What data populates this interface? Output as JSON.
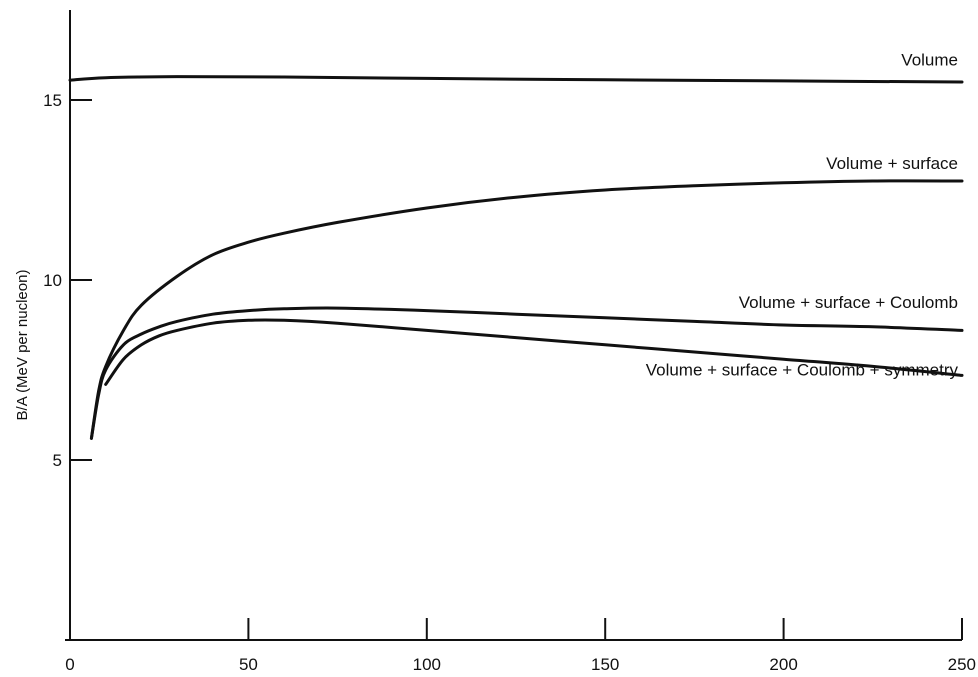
{
  "chart_data": {
    "type": "line",
    "title": "",
    "xlabel": "",
    "ylabel": "B/A (MeV per nucleon)",
    "xlim": [
      0,
      250
    ],
    "ylim": [
      0,
      17.5
    ],
    "xticks": [
      0,
      50,
      100,
      150,
      200,
      250
    ],
    "yticks": [
      5,
      10,
      15
    ],
    "grid": false,
    "series": [
      {
        "name": "Volume",
        "x": [
          0,
          10,
          30,
          60,
          100,
          150,
          200,
          250
        ],
        "y": [
          15.55,
          15.62,
          15.65,
          15.64,
          15.6,
          15.56,
          15.53,
          15.5
        ]
      },
      {
        "name": "Volume + surface",
        "x": [
          6,
          8,
          10,
          15,
          20,
          30,
          40,
          50,
          60,
          75,
          100,
          125,
          150,
          175,
          200,
          225,
          250
        ],
        "y": [
          5.6,
          6.9,
          7.6,
          8.6,
          9.3,
          10.1,
          10.7,
          11.05,
          11.3,
          11.6,
          12.0,
          12.3,
          12.5,
          12.62,
          12.7,
          12.75,
          12.75
        ]
      },
      {
        "name": "Volume + surface + Coulomb",
        "x": [
          6,
          8,
          10,
          15,
          20,
          25,
          30,
          40,
          50,
          60,
          75,
          100,
          125,
          150,
          175,
          200,
          225,
          250
        ],
        "y": [
          5.6,
          6.8,
          7.5,
          8.2,
          8.5,
          8.7,
          8.85,
          9.05,
          9.15,
          9.2,
          9.22,
          9.15,
          9.05,
          8.95,
          8.85,
          8.75,
          8.7,
          8.6
        ]
      },
      {
        "name": "Volume + surface + Coulomb + symmetry",
        "x": [
          10,
          15,
          20,
          25,
          30,
          40,
          50,
          60,
          75,
          100,
          125,
          150,
          175,
          200,
          225,
          250
        ],
        "y": [
          7.1,
          7.8,
          8.2,
          8.45,
          8.6,
          8.8,
          8.88,
          8.88,
          8.8,
          8.6,
          8.4,
          8.2,
          8.0,
          7.8,
          7.6,
          7.35
        ]
      }
    ],
    "annotations": [
      "Volume",
      "Volume + surface",
      "Volume + surface + Coulomb",
      "Volume + surface + Coulomb + symmetry"
    ]
  }
}
